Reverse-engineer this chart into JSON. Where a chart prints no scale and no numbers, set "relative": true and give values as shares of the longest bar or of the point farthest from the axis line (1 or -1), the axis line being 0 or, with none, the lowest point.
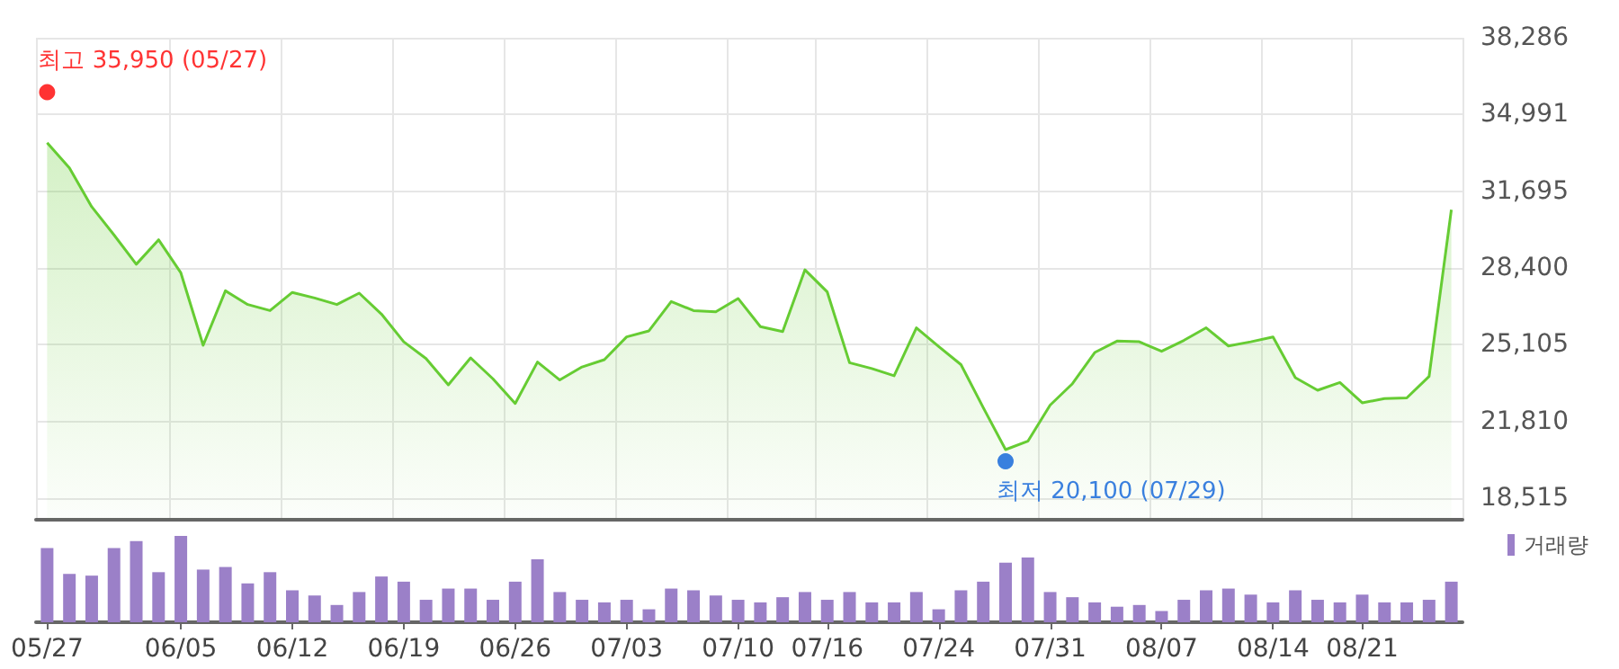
{
  "chart_data": [
    {
      "type": "area",
      "categories": [
        null,
        null,
        null,
        null,
        null,
        null,
        null,
        null,
        null,
        null,
        null,
        null,
        null,
        null,
        null,
        null,
        null,
        null,
        null,
        null,
        null,
        null,
        null,
        null,
        null,
        null,
        null,
        null,
        null,
        null,
        null,
        null,
        null,
        null,
        null,
        null,
        null,
        null,
        null,
        null,
        null,
        null,
        null,
        null,
        null,
        null,
        null,
        null,
        null,
        null,
        null,
        null,
        null,
        null,
        null,
        null,
        null,
        null,
        null,
        null,
        null,
        null,
        null,
        null
      ],
      "series": [
        {
          "color": "#66cc33",
          "values": [
            33780,
            32700,
            31030,
            29820,
            28560,
            29610,
            28190,
            25080,
            27420,
            26830,
            26570,
            27350,
            27110,
            26830,
            27320,
            26420,
            25230,
            24510,
            23380,
            24540,
            23640,
            22580,
            24360,
            23590,
            24150,
            24460,
            25440,
            25700,
            26960,
            26570,
            26520,
            27090,
            25880,
            25670,
            28320,
            27370,
            24330,
            24080,
            23770,
            25830,
            25030,
            24250,
            22400,
            20600,
            20960,
            22510,
            23430,
            24770,
            25260,
            25230,
            24820,
            25290,
            25830,
            25050,
            25230,
            25440,
            23690,
            23150,
            23480,
            22610,
            22790,
            22820,
            23740,
            30900
          ]
        },
        {
          "type": "scatter",
          "color": "#ff0000",
          "values": [
            35950,
            null,
            null,
            null,
            null,
            null,
            null,
            null,
            null,
            null,
            null,
            null,
            null,
            null,
            null,
            null,
            null,
            null,
            null,
            null,
            null,
            null,
            null,
            null,
            null,
            null,
            null,
            null,
            null,
            null,
            null,
            null,
            null,
            null,
            null,
            null,
            null,
            null,
            null,
            null,
            null,
            null,
            null,
            null,
            null,
            null,
            null,
            null,
            null,
            null,
            null,
            null,
            null,
            null,
            null,
            null,
            null,
            null,
            null,
            null,
            null,
            null,
            null,
            null
          ],
          "value_labels": [
            "최고 35,950 (05/27)",
            null,
            null,
            null,
            null,
            null,
            null,
            null,
            null,
            null,
            null,
            null,
            null,
            null,
            null,
            null,
            null,
            null,
            null,
            null,
            null,
            null,
            null,
            null,
            null,
            null,
            null,
            null,
            null,
            null,
            null,
            null,
            null,
            null,
            null,
            null,
            null,
            null,
            null,
            null,
            null,
            null,
            null,
            null,
            null,
            null,
            null,
            null,
            null,
            null,
            null,
            null,
            null,
            null,
            null,
            null,
            null,
            null,
            null,
            null,
            null,
            null,
            null,
            null
          ]
        },
        {
          "type": "scatter",
          "color": "#0a60d8",
          "values": [
            null,
            null,
            null,
            null,
            null,
            null,
            null,
            null,
            null,
            null,
            null,
            null,
            null,
            null,
            null,
            null,
            null,
            null,
            null,
            null,
            null,
            null,
            null,
            null,
            null,
            null,
            null,
            null,
            null,
            null,
            null,
            null,
            null,
            null,
            null,
            null,
            null,
            null,
            null,
            null,
            null,
            null,
            null,
            20100,
            null,
            null,
            null,
            null,
            null,
            null,
            null,
            null,
            null,
            null,
            null,
            null,
            null,
            null,
            null,
            null,
            null,
            null,
            null,
            null
          ],
          "value_labels": [
            null,
            null,
            null,
            null,
            null,
            null,
            null,
            null,
            null,
            null,
            null,
            null,
            null,
            null,
            null,
            null,
            null,
            null,
            null,
            null,
            null,
            null,
            null,
            null,
            null,
            null,
            null,
            null,
            null,
            null,
            null,
            null,
            null,
            null,
            null,
            null,
            null,
            null,
            null,
            null,
            null,
            null,
            null,
            "최저 20,100 (07/29)",
            null,
            null,
            null,
            null,
            null,
            null,
            null,
            null,
            null,
            null,
            null,
            null,
            null,
            null,
            null,
            null,
            null,
            null,
            null,
            null
          ]
        }
      ],
      "ylim": [
        17588,
        38286
      ],
      "yticks": [
        {
          "value": 18515,
          "label": "18,515"
        },
        {
          "value": 21810,
          "label": "21,810"
        },
        {
          "value": 25105,
          "label": "25,105"
        },
        {
          "value": 28400,
          "label": "28,400"
        },
        {
          "value": 31695,
          "label": "31,695"
        },
        {
          "value": 34991,
          "label": "34,991"
        },
        {
          "value": 38286,
          "label": "38,286"
        }
      ],
      "grid": true,
      "tick_labels": "y"
    },
    {
      "type": "bar",
      "relative": true,
      "categories": [
        "05/27",
        null,
        null,
        null,
        null,
        null,
        "06/05",
        null,
        null,
        null,
        null,
        "06/12",
        null,
        null,
        null,
        null,
        "06/19",
        null,
        null,
        null,
        null,
        "06/26",
        null,
        null,
        null,
        null,
        "07/03",
        null,
        null,
        null,
        null,
        "07/10",
        null,
        null,
        null,
        "07/16",
        null,
        null,
        null,
        null,
        "07/24",
        null,
        null,
        null,
        null,
        "07/31",
        null,
        null,
        null,
        null,
        "08/07",
        null,
        null,
        null,
        null,
        "08/14",
        null,
        null,
        null,
        "08/21",
        null,
        null,
        null,
        null
      ],
      "series": [
        {
          "name": "거래량",
          "color": "#9b80c8",
          "values": [
            0.86,
            0.56,
            0.54,
            0.86,
            0.94,
            0.58,
            1,
            0.61,
            0.64,
            0.45,
            0.58,
            0.37,
            0.31,
            0.2,
            0.35,
            0.53,
            0.47,
            0.26,
            0.39,
            0.39,
            0.26,
            0.47,
            0.73,
            0.35,
            0.26,
            0.23,
            0.26,
            0.15,
            0.39,
            0.37,
            0.31,
            0.26,
            0.23,
            0.29,
            0.35,
            0.26,
            0.35,
            0.23,
            0.23,
            0.35,
            0.15,
            0.37,
            0.47,
            0.69,
            0.75,
            0.35,
            0.29,
            0.23,
            0.18,
            0.2,
            0.13,
            0.26,
            0.37,
            0.39,
            0.32,
            0.23,
            0.37,
            0.26,
            0.23,
            0.32,
            0.23,
            0.23,
            0.26,
            0.47
          ]
        }
      ],
      "legend": "top right",
      "grid": false,
      "tick_labels": "x"
    }
  ]
}
